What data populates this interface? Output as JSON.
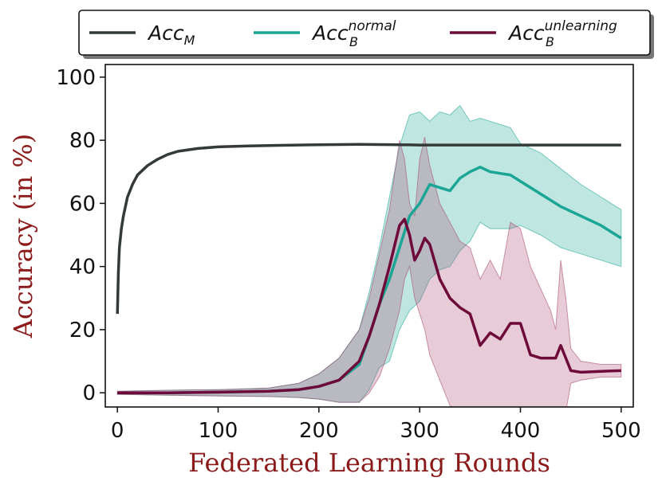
{
  "chart_data": {
    "type": "line",
    "title": "",
    "xlabel": "Federated Learning Rounds",
    "ylabel": "Accuracy (in %)",
    "xlim": [
      -12,
      512
    ],
    "ylim": [
      -4.5,
      104
    ],
    "xticks": [
      0,
      100,
      200,
      300,
      400,
      500
    ],
    "yticks": [
      0,
      20,
      40,
      60,
      80,
      100
    ],
    "legend_position": "top",
    "series": [
      {
        "name": "Acc_M",
        "legend_base": "Acc",
        "legend_sub": "M",
        "legend_sup": "",
        "color": "#333a39",
        "x": [
          0,
          1,
          2,
          4,
          6,
          10,
          15,
          20,
          30,
          40,
          50,
          60,
          80,
          100,
          130,
          160,
          200,
          240,
          280,
          300,
          350,
          400,
          450,
          500
        ],
        "y": [
          25,
          38,
          46,
          52,
          56,
          62,
          66,
          69,
          72,
          74,
          75.5,
          76.5,
          77.4,
          77.9,
          78.2,
          78.4,
          78.6,
          78.7,
          78.6,
          78.5,
          78.5,
          78.5,
          78.5,
          78.5
        ],
        "band_upper": [],
        "band_lower": []
      },
      {
        "name": "Acc_B^normal",
        "legend_base": "Acc",
        "legend_sub": "B",
        "legend_sup": "normal",
        "color": "#1aa595",
        "band_color": "#1aa595",
        "x": [
          0,
          50,
          100,
          150,
          180,
          200,
          220,
          240,
          250,
          260,
          270,
          280,
          290,
          300,
          310,
          320,
          330,
          340,
          350,
          360,
          370,
          380,
          390,
          400,
          420,
          440,
          460,
          480,
          500
        ],
        "y": [
          0,
          0,
          0.2,
          0.5,
          1,
          2,
          4,
          9,
          18,
          28,
          36,
          46,
          56,
          60,
          66,
          65,
          64,
          68,
          70,
          71.5,
          70,
          69.5,
          69,
          67,
          63,
          59,
          56,
          53,
          49
        ],
        "band_upper": [
          0.5,
          0.8,
          1,
          1.5,
          3,
          6,
          11,
          20,
          32,
          46,
          62,
          78,
          88,
          89,
          86,
          89,
          88,
          91,
          86,
          87,
          86,
          85,
          84,
          79,
          76,
          71,
          66,
          62,
          58
        ],
        "band_lower": [
          -0.5,
          -0.8,
          -1,
          -1.2,
          -1.5,
          -2,
          -3,
          -3,
          1,
          8,
          10,
          20,
          26,
          29,
          36,
          39,
          40,
          45,
          48,
          54,
          52,
          52,
          52,
          53,
          50,
          46,
          44,
          42,
          40
        ]
      },
      {
        "name": "Acc_B^unlearning",
        "legend_base": "Acc",
        "legend_sub": "B",
        "legend_sup": "unlearning",
        "color": "#6e0a39",
        "band_color": "#a8466e",
        "x": [
          0,
          50,
          100,
          150,
          180,
          200,
          220,
          240,
          250,
          260,
          270,
          280,
          285,
          290,
          295,
          300,
          305,
          310,
          320,
          330,
          340,
          350,
          360,
          370,
          380,
          390,
          400,
          410,
          420,
          430,
          435,
          440,
          445,
          450,
          460,
          480,
          500
        ],
        "y": [
          0,
          0,
          0.2,
          0.5,
          1,
          2,
          4,
          10,
          18,
          28,
          40,
          53,
          55,
          50,
          42,
          45,
          49,
          47,
          36,
          30,
          27,
          25,
          15,
          19,
          17,
          22,
          22,
          12,
          11,
          11,
          11,
          15,
          11,
          7,
          6.5,
          6.8,
          7
        ],
        "band_upper": [
          0.5,
          0.8,
          1,
          1.5,
          3,
          6,
          11,
          20,
          30,
          44,
          58,
          80,
          74,
          60,
          56,
          74,
          81,
          72,
          60,
          54,
          48,
          46,
          36,
          42,
          36,
          54,
          52,
          40,
          33,
          26,
          20,
          42,
          30,
          14,
          10,
          9,
          9
        ],
        "band_lower": [
          -0.5,
          -0.8,
          -1,
          -1.2,
          -1.5,
          -2,
          -3,
          -3,
          0,
          5,
          14,
          26,
          36,
          40,
          30,
          25,
          20,
          12,
          4,
          -4,
          -6,
          -6,
          -6,
          -6,
          -6,
          -6,
          -6,
          -6,
          -6,
          -6,
          -6,
          -6,
          -6,
          3,
          4,
          5,
          5
        ]
      }
    ]
  }
}
